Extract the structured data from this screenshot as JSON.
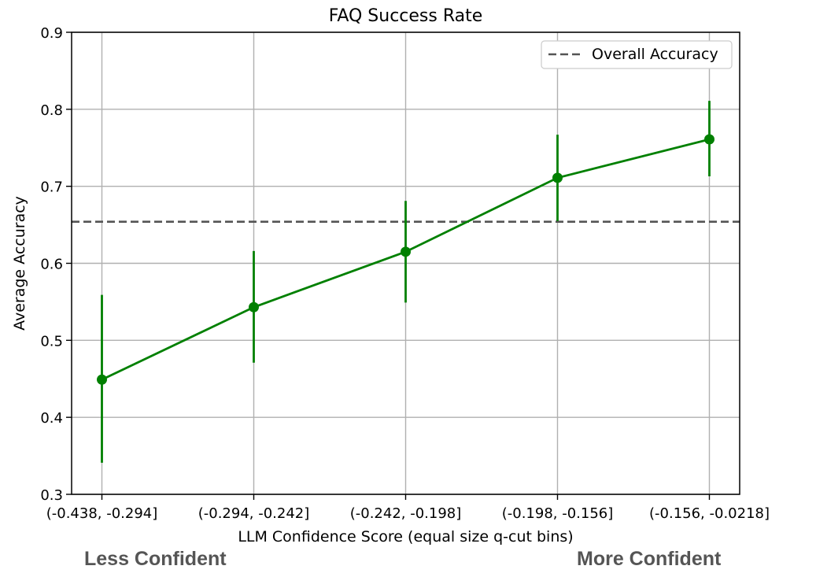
{
  "chart_data": {
    "type": "line",
    "title": "FAQ Success Rate",
    "xlabel": "LLM Confidence Score (equal size q-cut bins)",
    "ylabel": "Average Accuracy",
    "ylim": [
      0.3,
      0.9
    ],
    "yticks": [
      "0.3",
      "0.4",
      "0.5",
      "0.6",
      "0.7",
      "0.8",
      "0.9"
    ],
    "categories": [
      "(-0.438, -0.294]",
      "(-0.294, -0.242]",
      "(-0.242, -0.198]",
      "(-0.198, -0.156]",
      "(-0.156, -0.0218]"
    ],
    "series": [
      {
        "name": "Average Accuracy",
        "values": [
          0.449,
          0.543,
          0.615,
          0.711,
          0.761
        ],
        "lower": [
          0.341,
          0.471,
          0.549,
          0.655,
          0.713
        ],
        "upper": [
          0.559,
          0.616,
          0.681,
          0.767,
          0.811
        ],
        "color": "#008000"
      }
    ],
    "reference_line": {
      "name": "Overall Accuracy",
      "value": 0.654,
      "style": "dashed",
      "color": "#555555"
    },
    "legend": {
      "position": "top-right",
      "entries": [
        "Overall Accuracy"
      ]
    },
    "grid": true
  },
  "annotations": {
    "left": "Less Confident",
    "right": "More Confident"
  }
}
